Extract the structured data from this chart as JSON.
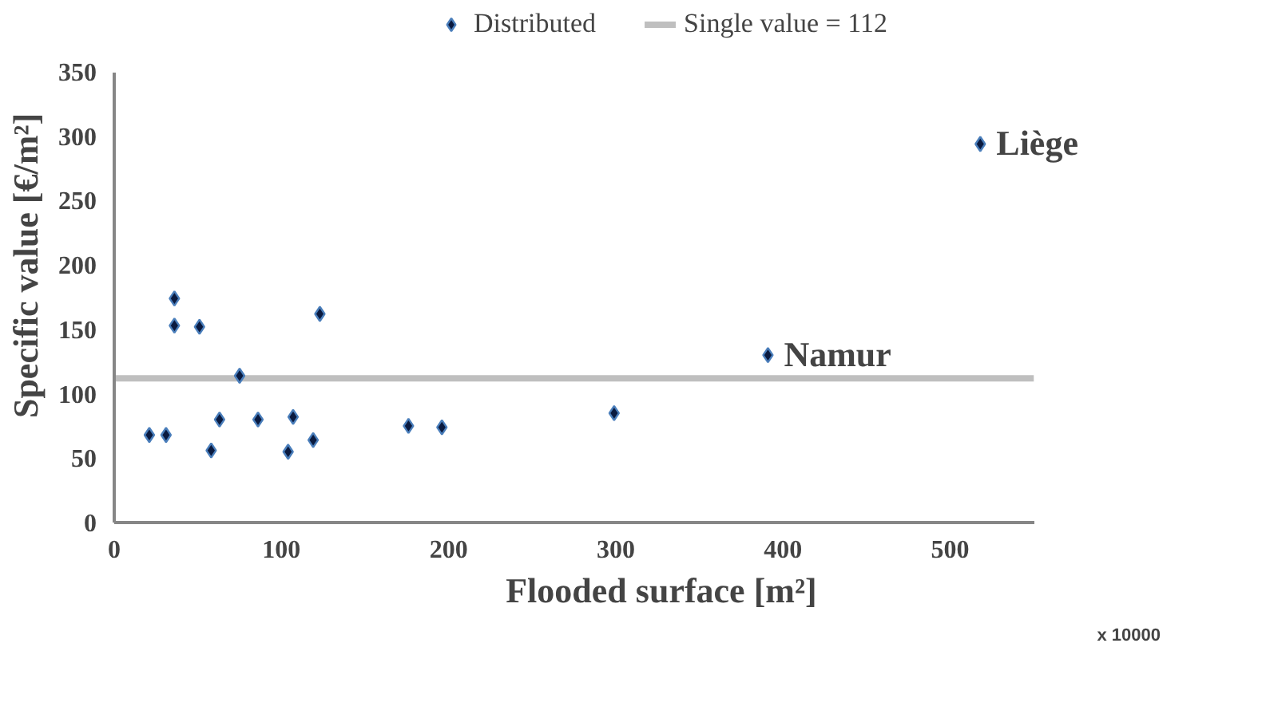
{
  "chart_data": {
    "type": "scatter",
    "xlabel": "Flooded surface [m²]",
    "ylabel": "Specific value [€/m²]",
    "xlim": [
      0,
      550
    ],
    "ylim": [
      0,
      350
    ],
    "xticks": [
      0,
      100,
      200,
      300,
      400,
      500
    ],
    "yticks": [
      0,
      50,
      100,
      150,
      200,
      250,
      300,
      350
    ],
    "grid": false,
    "legend": "top",
    "marker": "diamond",
    "series": [
      {
        "name": "Distributed",
        "color": "#0a1a3f",
        "x": [
          21,
          31,
          36,
          36,
          51,
          75,
          63,
          58,
          86,
          107,
          104,
          119,
          123,
          176,
          196,
          299,
          391,
          518
        ],
        "values": [
          68,
          68,
          174,
          153,
          152,
          114,
          80,
          56,
          80,
          82,
          55,
          64,
          162,
          75,
          74,
          85,
          130,
          294
        ]
      }
    ],
    "ref_lines": [
      {
        "axis": "y",
        "value": 112,
        "label": "Single value = 112",
        "color": "#bfbfbf",
        "line_style": "solid"
      }
    ],
    "annotations": [
      {
        "text": "Liège",
        "x": 518,
        "y": 294
      },
      {
        "text": "Namur",
        "x": 391,
        "y": 130
      },
      "x 10000"
    ]
  }
}
